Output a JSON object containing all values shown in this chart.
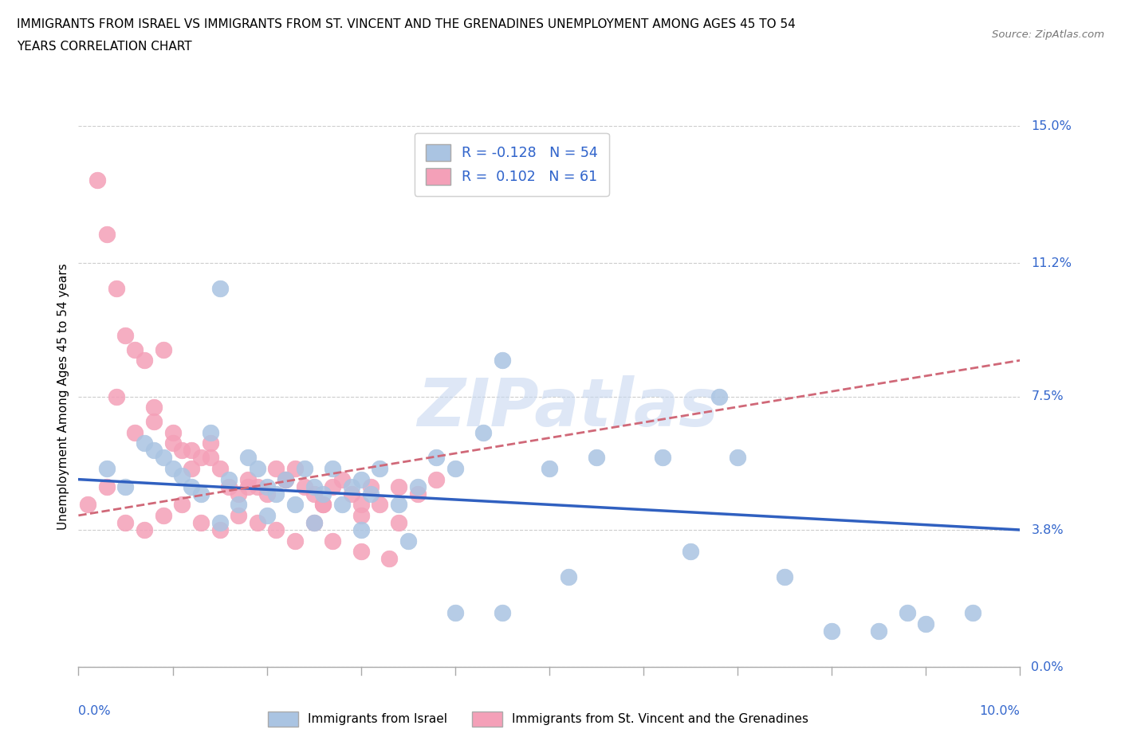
{
  "title_line1": "IMMIGRANTS FROM ISRAEL VS IMMIGRANTS FROM ST. VINCENT AND THE GRENADINES UNEMPLOYMENT AMONG AGES 45 TO 54",
  "title_line2": "YEARS CORRELATION CHART",
  "source": "Source: ZipAtlas.com",
  "ylabel": "Unemployment Among Ages 45 to 54 years",
  "ytick_labels": [
    "0.0%",
    "3.8%",
    "7.5%",
    "11.2%",
    "15.0%"
  ],
  "ytick_values": [
    0.0,
    3.8,
    7.5,
    11.2,
    15.0
  ],
  "xlim": [
    0.0,
    10.0
  ],
  "ylim": [
    0.0,
    15.0
  ],
  "legend_label_blue": "Immigrants from Israel",
  "legend_label_pink": "Immigrants from St. Vincent and the Grenadines",
  "r_blue": -0.128,
  "n_blue": 54,
  "r_pink": 0.102,
  "n_pink": 61,
  "blue_color": "#aac4e2",
  "pink_color": "#f4a0b8",
  "blue_line_color": "#3060c0",
  "pink_line_color": "#d06878",
  "watermark": "ZIPatlas",
  "blue_scatter_x": [
    0.3,
    0.5,
    0.7,
    0.8,
    0.9,
    1.0,
    1.1,
    1.2,
    1.3,
    1.4,
    1.5,
    1.6,
    1.7,
    1.8,
    1.9,
    2.0,
    2.1,
    2.2,
    2.3,
    2.4,
    2.5,
    2.6,
    2.7,
    2.8,
    2.9,
    3.0,
    3.1,
    3.2,
    3.4,
    3.6,
    3.8,
    4.0,
    4.3,
    4.5,
    5.0,
    5.5,
    6.2,
    6.8,
    7.0,
    8.8,
    9.0,
    9.5,
    1.5,
    2.0,
    2.5,
    3.0,
    3.5,
    4.0,
    4.5,
    5.2,
    6.5,
    7.5,
    8.0,
    8.5
  ],
  "blue_scatter_y": [
    5.5,
    5.0,
    6.2,
    6.0,
    5.8,
    5.5,
    5.3,
    5.0,
    4.8,
    6.5,
    10.5,
    5.2,
    4.5,
    5.8,
    5.5,
    5.0,
    4.8,
    5.2,
    4.5,
    5.5,
    5.0,
    4.8,
    5.5,
    4.5,
    5.0,
    5.2,
    4.8,
    5.5,
    4.5,
    5.0,
    5.8,
    5.5,
    6.5,
    8.5,
    5.5,
    5.8,
    5.8,
    7.5,
    5.8,
    1.5,
    1.2,
    1.5,
    4.0,
    4.2,
    4.0,
    3.8,
    3.5,
    1.5,
    1.5,
    2.5,
    3.2,
    2.5,
    1.0,
    1.0
  ],
  "pink_scatter_x": [
    0.1,
    0.2,
    0.3,
    0.4,
    0.5,
    0.6,
    0.7,
    0.8,
    0.9,
    1.0,
    1.1,
    1.2,
    1.3,
    1.4,
    1.5,
    1.6,
    1.7,
    1.8,
    1.9,
    2.0,
    2.1,
    2.2,
    2.3,
    2.4,
    2.5,
    2.6,
    2.7,
    2.8,
    2.9,
    3.0,
    3.1,
    3.2,
    3.4,
    3.6,
    3.8,
    0.5,
    0.7,
    0.9,
    1.1,
    1.3,
    1.5,
    1.7,
    1.9,
    2.1,
    2.3,
    2.5,
    2.7,
    3.0,
    3.3,
    0.3,
    0.6,
    1.0,
    1.4,
    1.8,
    2.2,
    2.6,
    3.0,
    3.4,
    0.4,
    0.8,
    1.2
  ],
  "pink_scatter_y": [
    4.5,
    13.5,
    12.0,
    10.5,
    9.2,
    8.8,
    8.5,
    7.2,
    8.8,
    6.5,
    6.0,
    5.5,
    5.8,
    6.2,
    5.5,
    5.0,
    4.8,
    5.2,
    5.0,
    4.8,
    5.5,
    5.2,
    5.5,
    5.0,
    4.8,
    4.5,
    5.0,
    5.2,
    4.8,
    4.5,
    5.0,
    4.5,
    5.0,
    4.8,
    5.2,
    4.0,
    3.8,
    4.2,
    4.5,
    4.0,
    3.8,
    4.2,
    4.0,
    3.8,
    3.5,
    4.0,
    3.5,
    3.2,
    3.0,
    5.0,
    6.5,
    6.2,
    5.8,
    5.0,
    5.2,
    4.5,
    4.2,
    4.0,
    7.5,
    6.8,
    6.0
  ],
  "blue_trend_x": [
    0.0,
    10.0
  ],
  "blue_trend_y": [
    5.2,
    3.8
  ],
  "pink_trend_x": [
    0.0,
    10.0
  ],
  "pink_trend_y": [
    4.2,
    8.5
  ]
}
